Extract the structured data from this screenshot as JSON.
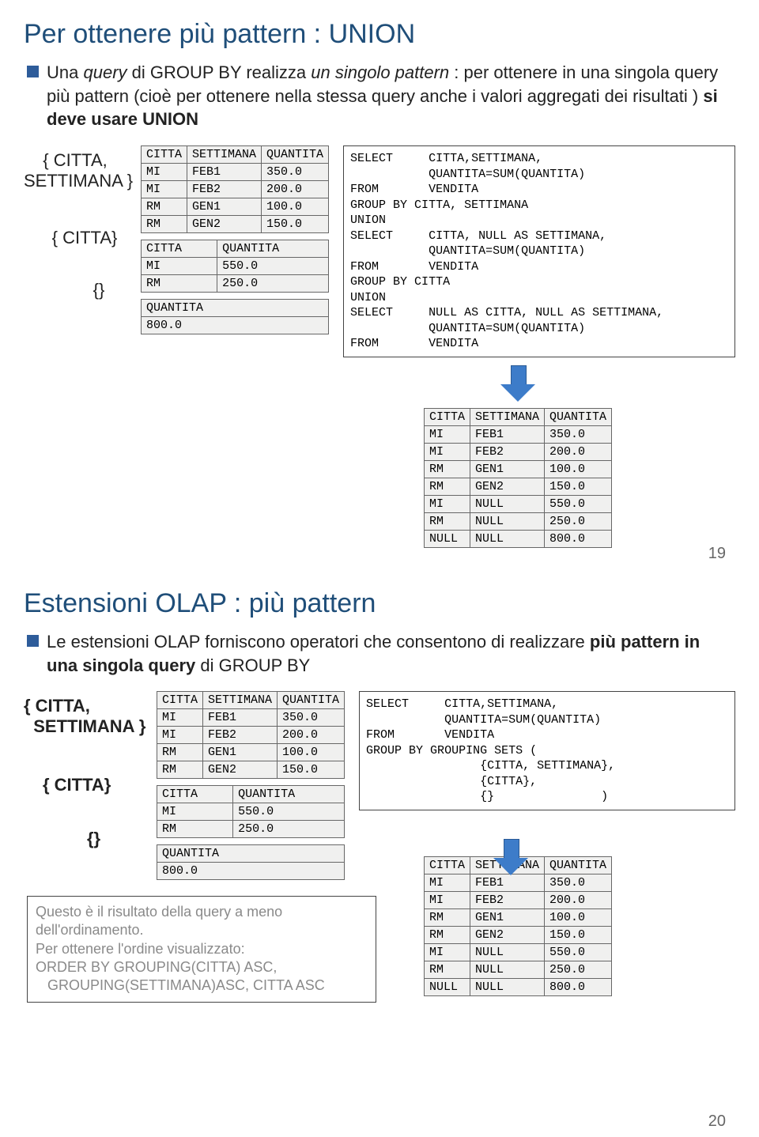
{
  "slide1": {
    "title": "Per ottenere più pattern : UNION",
    "bullet_html": "Una <i>query</i> di GROUP BY realizza <i>un singolo pattern</i> : per ottenere in una singola query più pattern (cioè per ottenere nella stessa query anche i valori aggregati dei risultati ) <b>si deve usare UNION</b>",
    "label_cs": "{ CITTA,\nSETTIMANA }",
    "label_c": "{ CITTA}",
    "label_e": "{}",
    "tbl_cs_cols": [
      "CITTA",
      "SETTIMANA",
      "QUANTITA"
    ],
    "tbl_cs_rows": [
      [
        "MI",
        "FEB1",
        "350.0"
      ],
      [
        "MI",
        "FEB2",
        "200.0"
      ],
      [
        "RM",
        "GEN1",
        "100.0"
      ],
      [
        "RM",
        "GEN2",
        "150.0"
      ]
    ],
    "tbl_c_cols": [
      "CITTA",
      "QUANTITA"
    ],
    "tbl_c_rows": [
      [
        "MI",
        "550.0"
      ],
      [
        "RM",
        "250.0"
      ]
    ],
    "tbl_e_cols": [
      "QUANTITA"
    ],
    "tbl_e_rows": [
      [
        "800.0"
      ]
    ],
    "sql": "SELECT     CITTA,SETTIMANA,\n           QUANTITA=SUM(QUANTITA)\nFROM       VENDITA\nGROUP BY CITTA, SETTIMANA\nUNION\nSELECT     CITTA, NULL AS SETTIMANA,\n           QUANTITA=SUM(QUANTITA)\nFROM       VENDITA\nGROUP BY CITTA\nUNION\nSELECT     NULL AS CITTA, NULL AS SETTIMANA,\n           QUANTITA=SUM(QUANTITA)\nFROM       VENDITA",
    "result_cols": [
      "CITTA",
      "SETTIMANA",
      "QUANTITA"
    ],
    "result_rows": [
      [
        "MI",
        "FEB1",
        "350.0"
      ],
      [
        "MI",
        "FEB2",
        "200.0"
      ],
      [
        "RM",
        "GEN1",
        "100.0"
      ],
      [
        "RM",
        "GEN2",
        "150.0"
      ],
      [
        "MI",
        "NULL",
        "550.0"
      ],
      [
        "RM",
        "NULL",
        "250.0"
      ],
      [
        "NULL",
        "NULL",
        "800.0"
      ]
    ],
    "page_num": "19"
  },
  "slide2": {
    "title": "Estensioni OLAP : più pattern",
    "bullet_html": "Le estensioni OLAP forniscono operatori che consentono di realizzare <b>più pattern in una singola query</b> di GROUP BY",
    "label_cs": "{ CITTA,\n  SETTIMANA }",
    "label_c": "{ CITTA}",
    "label_e": "{}",
    "tbl_cs_cols": [
      "CITTA",
      "SETTIMANA",
      "QUANTITA"
    ],
    "tbl_cs_rows": [
      [
        "MI",
        "FEB1",
        "350.0"
      ],
      [
        "MI",
        "FEB2",
        "200.0"
      ],
      [
        "RM",
        "GEN1",
        "100.0"
      ],
      [
        "RM",
        "GEN2",
        "150.0"
      ]
    ],
    "tbl_c_cols": [
      "CITTA",
      "QUANTITA"
    ],
    "tbl_c_rows": [
      [
        "MI",
        "550.0"
      ],
      [
        "RM",
        "250.0"
      ]
    ],
    "tbl_e_cols": [
      "QUANTITA"
    ],
    "tbl_e_rows": [
      [
        "800.0"
      ]
    ],
    "sql": "SELECT     CITTA,SETTIMANA,\n           QUANTITA=SUM(QUANTITA)\nFROM       VENDITA\nGROUP BY GROUPING SETS (\n                {CITTA, SETTIMANA},\n                {CITTA},\n                {}               )",
    "note_html": "Questo è il risultato della query a meno<br>dell'ordinamento.<br>Per ottenere l'ordine visualizzato:<br>ORDER BY GROUPING(CITTA) ASC,<br>&nbsp;&nbsp;&nbsp;GROUPING(SETTIMANA)ASC, CITTA ASC",
    "result_cols": [
      "CITTA",
      "SETTIMANA",
      "QUANTITA"
    ],
    "result_rows": [
      [
        "MI",
        "FEB1",
        "350.0"
      ],
      [
        "MI",
        "FEB2",
        "200.0"
      ],
      [
        "RM",
        "GEN1",
        "100.0"
      ],
      [
        "RM",
        "GEN2",
        "150.0"
      ],
      [
        "MI",
        "NULL",
        "550.0"
      ],
      [
        "RM",
        "NULL",
        "250.0"
      ],
      [
        "NULL",
        "NULL",
        "800.0"
      ]
    ],
    "page_num": "20"
  }
}
